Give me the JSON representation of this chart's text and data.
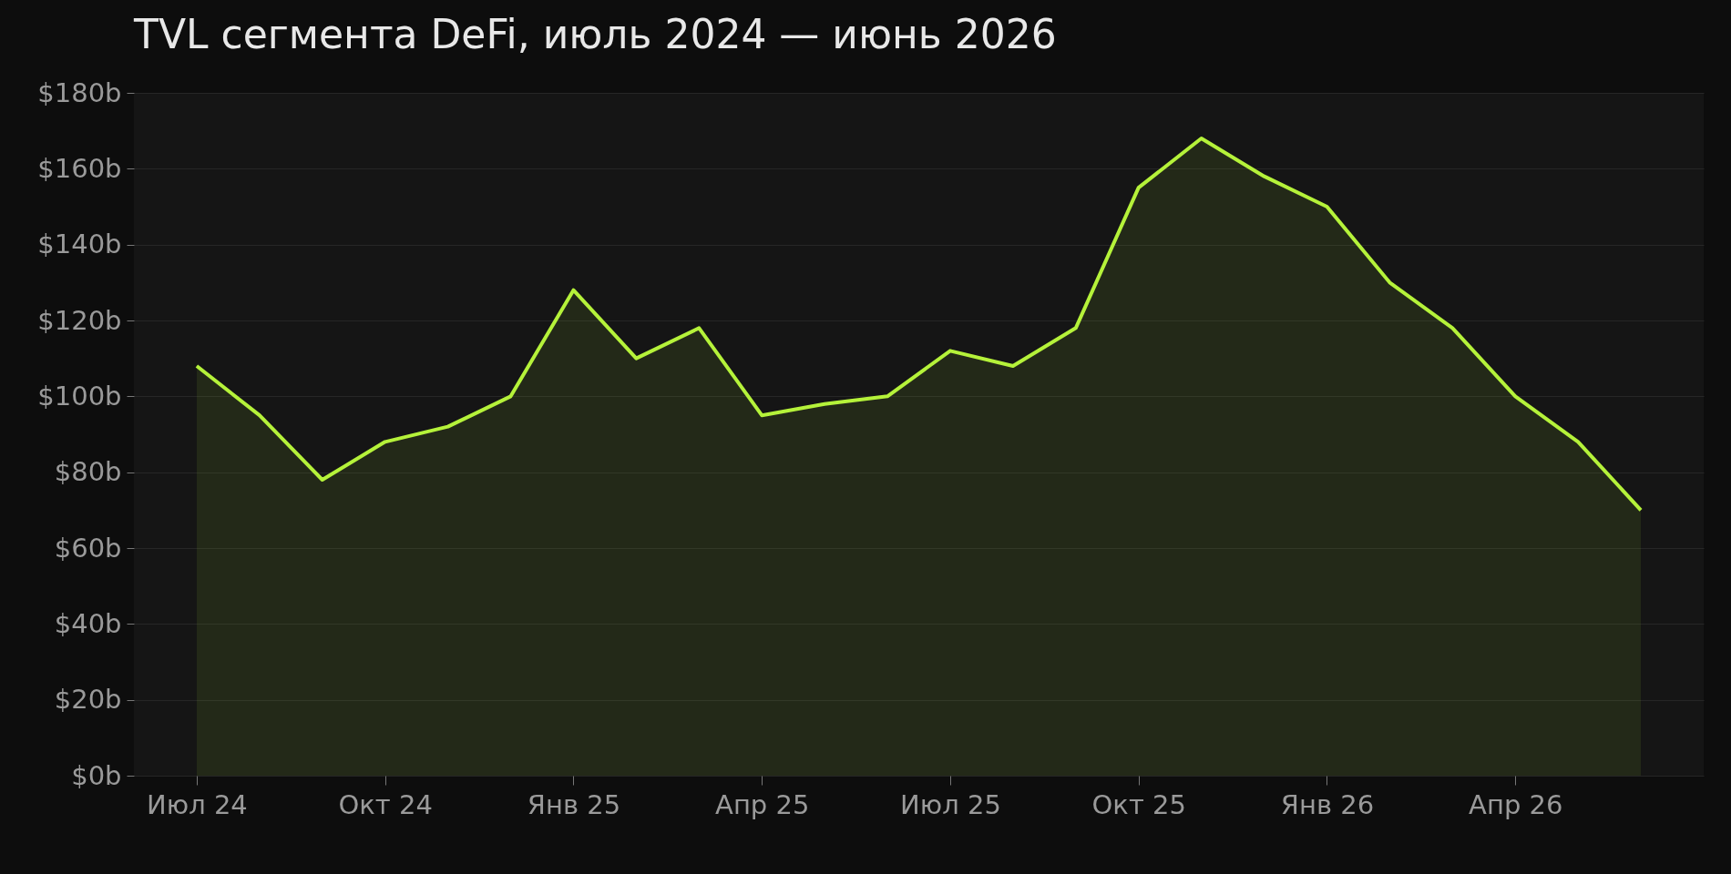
{
  "chart_data": {
    "type": "area",
    "title": "TVL сегмента DeFi, июль 2024 — июнь 2026",
    "categories": [
      "Июл 24",
      null,
      null,
      "Окт 24",
      null,
      null,
      "Янв 25",
      null,
      null,
      "Апр 25",
      null,
      null,
      "Июл 25",
      null,
      null,
      "Окт 25",
      null,
      null,
      "Янв 26",
      null,
      null,
      "Апр 26",
      null,
      null
    ],
    "series": [
      {
        "color": "#b5f23a",
        "values": [
          108,
          95,
          78,
          88,
          92,
          100,
          128,
          110,
          118,
          95,
          98,
          100,
          112,
          108,
          118,
          155,
          168,
          158,
          150,
          130,
          118,
          100,
          88,
          70
        ]
      }
    ],
    "ylim": [
      0,
      180
    ],
    "yticks": [
      {
        "value": 0,
        "label": "$0b"
      },
      {
        "value": 20,
        "label": "$20b"
      },
      {
        "value": 40,
        "label": "$40b"
      },
      {
        "value": 60,
        "label": "$60b"
      },
      {
        "value": 80,
        "label": "$80b"
      },
      {
        "value": 100,
        "label": "$100b"
      },
      {
        "value": 120,
        "label": "$120b"
      },
      {
        "value": 140,
        "label": "$140b"
      },
      {
        "value": 160,
        "label": "$160b"
      },
      {
        "value": 180,
        "label": "$180b"
      }
    ],
    "grid": "y"
  }
}
